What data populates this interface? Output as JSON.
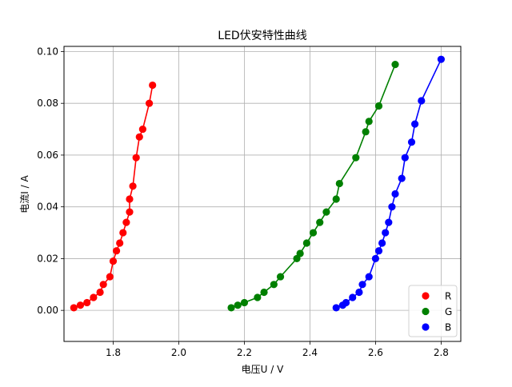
{
  "chart_data": {
    "type": "scatter",
    "title": "LED伏安特性曲线",
    "xlabel": "电压U / V",
    "ylabel": "电流I / A",
    "xlim": [
      1.65,
      2.86
    ],
    "ylim": [
      -0.012,
      0.102
    ],
    "xticks": [
      1.8,
      2.0,
      2.2,
      2.4,
      2.6,
      2.8
    ],
    "xtick_labels": [
      "1.8",
      "2.0",
      "2.2",
      "2.4",
      "2.6",
      "2.8"
    ],
    "yticks": [
      0.0,
      0.02,
      0.04,
      0.06,
      0.08,
      0.1
    ],
    "ytick_labels": [
      "0.00",
      "0.02",
      "0.04",
      "0.06",
      "0.08",
      "0.10"
    ],
    "grid": true,
    "legend": "bottom-right",
    "series": [
      {
        "name": "R",
        "color": "#ff0000",
        "x": [
          1.68,
          1.7,
          1.72,
          1.74,
          1.76,
          1.77,
          1.79,
          1.8,
          1.81,
          1.82,
          1.83,
          1.84,
          1.85,
          1.85,
          1.86,
          1.87,
          1.88,
          1.89,
          1.91,
          1.92
        ],
        "y": [
          0.001,
          0.002,
          0.003,
          0.005,
          0.007,
          0.01,
          0.013,
          0.019,
          0.023,
          0.026,
          0.03,
          0.034,
          0.038,
          0.043,
          0.048,
          0.059,
          0.067,
          0.07,
          0.08,
          0.087
        ]
      },
      {
        "name": "G",
        "color": "#008000",
        "x": [
          2.16,
          2.18,
          2.2,
          2.24,
          2.26,
          2.29,
          2.31,
          2.36,
          2.37,
          2.39,
          2.41,
          2.43,
          2.45,
          2.48,
          2.49,
          2.54,
          2.57,
          2.58,
          2.61,
          2.66
        ],
        "y": [
          0.001,
          0.002,
          0.003,
          0.005,
          0.007,
          0.01,
          0.013,
          0.02,
          0.022,
          0.026,
          0.03,
          0.034,
          0.038,
          0.043,
          0.049,
          0.059,
          0.069,
          0.073,
          0.079,
          0.095
        ]
      },
      {
        "name": "B",
        "color": "#0000ff",
        "x": [
          2.48,
          2.5,
          2.51,
          2.53,
          2.55,
          2.56,
          2.58,
          2.6,
          2.61,
          2.62,
          2.63,
          2.64,
          2.65,
          2.66,
          2.68,
          2.69,
          2.71,
          2.72,
          2.74,
          2.8
        ],
        "y": [
          0.001,
          0.002,
          0.003,
          0.005,
          0.007,
          0.01,
          0.013,
          0.02,
          0.023,
          0.026,
          0.03,
          0.034,
          0.04,
          0.045,
          0.051,
          0.059,
          0.065,
          0.072,
          0.081,
          0.097
        ]
      }
    ]
  }
}
